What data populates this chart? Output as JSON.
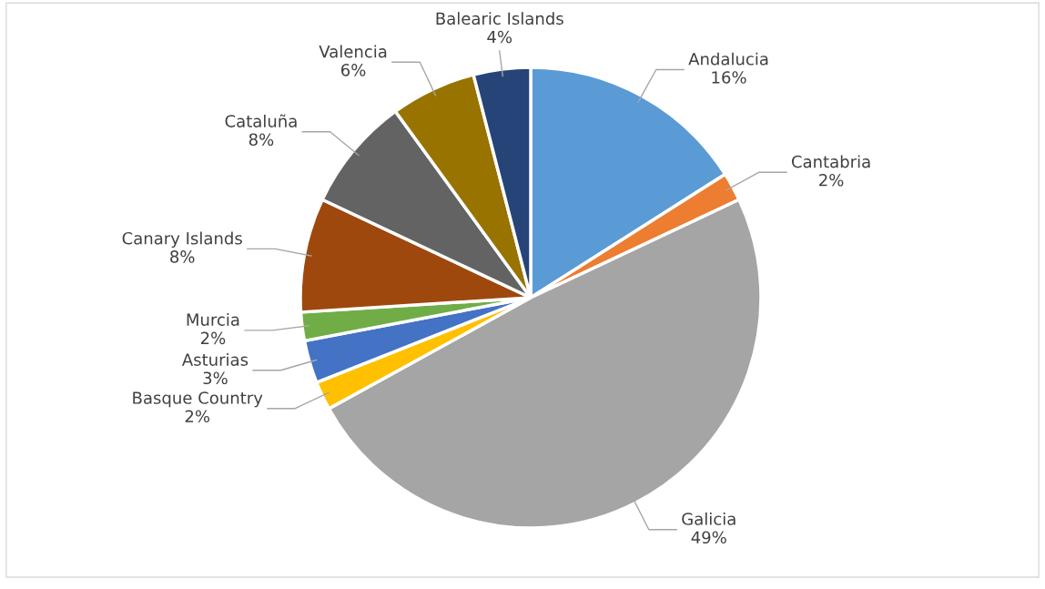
{
  "chart_data": {
    "type": "pie",
    "categories": [
      "Andalucia",
      "Cantabria",
      "Galicia",
      "Basque Country",
      "Asturias",
      "Murcia",
      "Canary Islands",
      "Cataluña",
      "Valencia",
      "Balearic Islands"
    ],
    "values": [
      16,
      2,
      49,
      2,
      3,
      2,
      8,
      8,
      6,
      4
    ],
    "value_labels": [
      "16%",
      "2%",
      "49%",
      "2%",
      "3%",
      "2%",
      "8%",
      "8%",
      "6%",
      "4%"
    ],
    "colors": [
      "#5b9bd5",
      "#ed7d31",
      "#a5a5a5",
      "#ffc000",
      "#4472c4",
      "#70ad47",
      "#9e480e",
      "#636363",
      "#997300",
      "#264478"
    ],
    "legend": false
  }
}
